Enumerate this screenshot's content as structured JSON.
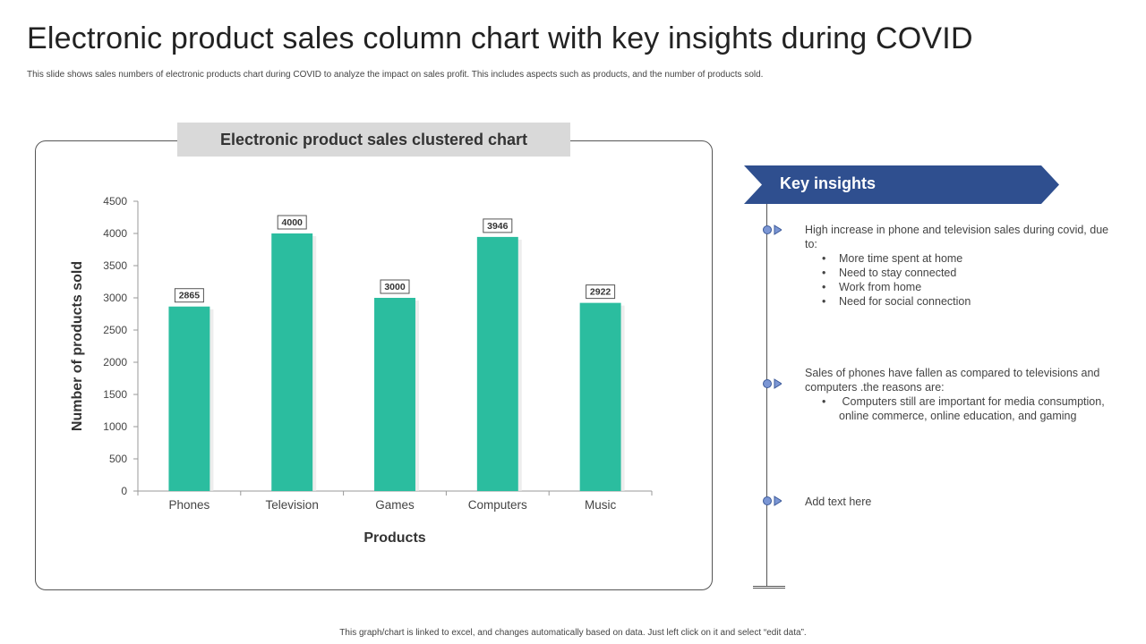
{
  "slide": {
    "title": "Electronic product sales column chart with key insights during COVID",
    "subtitle": "This slide shows sales numbers of electronic products chart during COVID to analyze the impact on sales profit. This includes aspects such as products, and the number of products sold.",
    "footer": "This graph/chart is linked to excel, and changes automatically based on data. Just left click on it and select “edit data”."
  },
  "chart_header": "Electronic product sales clustered chart",
  "chart_data": {
    "type": "bar",
    "title": "Electronic product sales clustered chart",
    "categories": [
      "Phones",
      "Television",
      "Games",
      "Computers",
      "Music"
    ],
    "values": [
      2865,
      4000,
      3000,
      3946,
      2922
    ],
    "data_labels": [
      "2865",
      "4000",
      "3000",
      "3946",
      "2922"
    ],
    "xlabel": "Products",
    "ylabel": "Number of products sold",
    "ylim": [
      0,
      4500
    ],
    "yticks": [
      "0",
      "500",
      "1000",
      "1500",
      "2000",
      "2500",
      "3000",
      "3500",
      "4000",
      "4500"
    ],
    "grid": false,
    "bar_color": "#2bbd9f"
  },
  "insights": {
    "heading": "Key insights",
    "banner_color": "#2f4f8f",
    "items": [
      {
        "text": "High increase in phone and television sales during covid, due to:",
        "bullets": [
          "More time spent at home",
          "Need to stay connected",
          "Work from home",
          "Need for social connection"
        ]
      },
      {
        "text": "Sales of phones have fallen as compared to televisions and computers .the reasons are:",
        "bullets": [
          " Computers still are important for media consumption, online commerce, online education, and gaming"
        ]
      },
      {
        "text": "Add text here",
        "bullets": []
      }
    ]
  },
  "colors": {
    "marker_fill": "#7b96d4",
    "marker_stroke": "#3b5998"
  }
}
